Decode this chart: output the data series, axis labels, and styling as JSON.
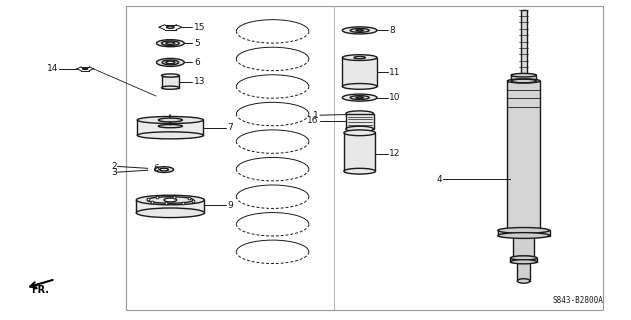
{
  "bg_color": "#ffffff",
  "line_color": "#1a1a1a",
  "fig_width": 6.31,
  "fig_height": 3.2,
  "code_text": "S843-B2800A",
  "border": [
    0.2,
    0.02,
    0.955,
    0.97
  ]
}
